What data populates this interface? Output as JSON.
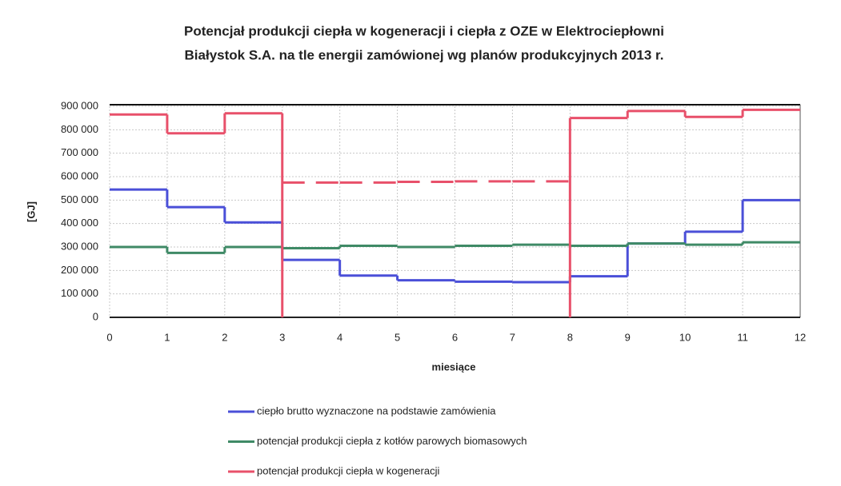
{
  "chart_data": {
    "type": "step",
    "title_lines": [
      "Potencjał produkcji ciepła w kogeneracji i ciepła z OZE w Elektrociepłowni",
      "Białystok S.A. na tle energii zamówionej wg planów produkcyjnych 2013 r."
    ],
    "x_label": "miesiące",
    "y_label": "[GJ]",
    "x": [
      0,
      1,
      2,
      3,
      4,
      5,
      6,
      7,
      8,
      9,
      10,
      11
    ],
    "xlim": [
      0,
      12
    ],
    "xticks": [
      0,
      1,
      2,
      3,
      4,
      5,
      6,
      7,
      8,
      9,
      10,
      11,
      12
    ],
    "ylim": [
      0,
      900000
    ],
    "yticks": [
      {
        "value": 0,
        "label": "0"
      },
      {
        "value": 100000,
        "label": "100 000"
      },
      {
        "value": 200000,
        "label": "200 000"
      },
      {
        "value": 300000,
        "label": "300 000"
      },
      {
        "value": 400000,
        "label": "400 000"
      },
      {
        "value": 500000,
        "label": "500 000"
      },
      {
        "value": 600000,
        "label": "600 000"
      },
      {
        "value": 700000,
        "label": "700 000"
      },
      {
        "value": 800000,
        "label": "800 000"
      },
      {
        "value": 900000,
        "label": "900 000"
      }
    ],
    "grid": true,
    "series": [
      {
        "name": "ciepło brutto wyznaczone na podstawie zamówienia",
        "color": "#4a4fd8",
        "values": [
          545000,
          470000,
          405000,
          245000,
          178000,
          158000,
          152000,
          150000,
          175000,
          315000,
          365000,
          500000
        ]
      },
      {
        "name": "potencjał produkcji ciepła z kotłów parowych biomasowych",
        "color": "#3f8a66",
        "values": [
          300000,
          275000,
          300000,
          295000,
          305000,
          300000,
          305000,
          310000,
          305000,
          315000,
          310000,
          320000
        ]
      },
      {
        "name": "potencjał produkcji ciepła w kogeneracji",
        "color": "#e8506a",
        "values": [
          865000,
          785000,
          870000,
          575000,
          575000,
          578000,
          580000,
          580000,
          850000,
          880000,
          855000,
          885000
        ],
        "dashed": [
          false,
          false,
          false,
          true,
          true,
          true,
          true,
          true,
          false,
          false,
          false,
          false
        ]
      }
    ]
  }
}
